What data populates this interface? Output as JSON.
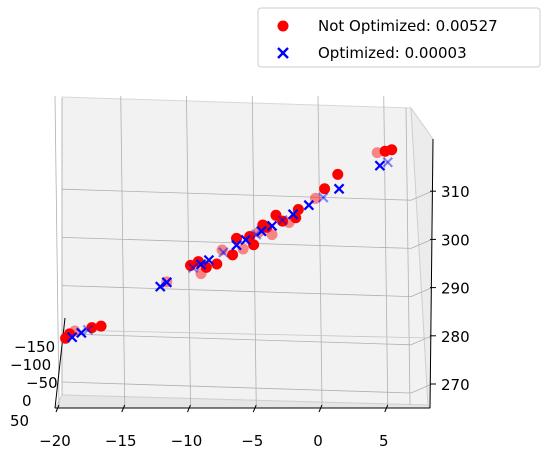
{
  "chart_data": {
    "type": "scatter",
    "projection": "3d",
    "legend": {
      "placement": "top-right",
      "entries": [
        {
          "label": "Not Optimized: 0.00527",
          "marker": "circle",
          "color": "#ff0000"
        },
        {
          "label": "Optimized: 0.00003",
          "marker": "x",
          "color": "#0000ff"
        }
      ]
    },
    "x_ticks": [
      "−20",
      "−15",
      "−10",
      "−5",
      "0",
      "5"
    ],
    "y_ticks": [
      "−150",
      "−100",
      "−50",
      "0",
      "50"
    ],
    "z_ticks": [
      "270",
      "280",
      "290",
      "300",
      "310"
    ],
    "xlim": [
      -20,
      7
    ],
    "zlim": [
      265,
      318
    ],
    "grid": true,
    "series": [
      {
        "name": "Not Optimized: 0.00527",
        "marker": "circle",
        "color": "#ff0000",
        "points": [
          [
            -19.5,
            279.5
          ],
          [
            -19.2,
            280.4
          ],
          [
            -18.8,
            281.0
          ],
          [
            -17.5,
            281.7
          ],
          [
            -16.8,
            282.0
          ],
          [
            -11.8,
            291.2
          ],
          [
            -10.0,
            294.6
          ],
          [
            -9.4,
            295.4
          ],
          [
            -9.2,
            292.9
          ],
          [
            -8.8,
            294.2
          ],
          [
            -8.0,
            294.9
          ],
          [
            -7.6,
            297.8
          ],
          [
            -6.8,
            296.8
          ],
          [
            -6.5,
            300.2
          ],
          [
            -6.0,
            298.0
          ],
          [
            -5.5,
            300.6
          ],
          [
            -5.2,
            298.9
          ],
          [
            -4.8,
            301.5
          ],
          [
            -4.5,
            303.0
          ],
          [
            -4.2,
            302.5
          ],
          [
            -3.8,
            301.0
          ],
          [
            -3.5,
            305.0
          ],
          [
            -3.0,
            303.8
          ],
          [
            -2.5,
            303.5
          ],
          [
            -2.0,
            304.5
          ],
          [
            -1.8,
            306.2
          ],
          [
            -0.5,
            308.5
          ],
          [
            0.2,
            310.5
          ],
          [
            1.2,
            313.5
          ],
          [
            4.2,
            318.0
          ],
          [
            4.8,
            318.3
          ],
          [
            5.3,
            318.6
          ]
        ]
      },
      {
        "name": "Optimized: 0.00003",
        "marker": "x",
        "color": "#0000ff",
        "points": [
          [
            -19.0,
            279.7
          ],
          [
            -18.3,
            280.6
          ],
          [
            -17.8,
            281.2
          ],
          [
            -12.3,
            290.2
          ],
          [
            -11.8,
            291.1
          ],
          [
            -9.8,
            294.1
          ],
          [
            -9.2,
            294.8
          ],
          [
            -8.6,
            295.7
          ],
          [
            -7.5,
            297.3
          ],
          [
            -6.5,
            298.8
          ],
          [
            -5.8,
            299.9
          ],
          [
            -5.0,
            301.0
          ],
          [
            -4.6,
            301.7
          ],
          [
            -3.8,
            302.8
          ],
          [
            -3.0,
            304.0
          ],
          [
            -2.2,
            305.2
          ],
          [
            -1.0,
            307.1
          ],
          [
            0.1,
            308.7
          ],
          [
            1.3,
            310.5
          ],
          [
            4.4,
            315.3
          ],
          [
            5.0,
            316.0
          ]
        ]
      }
    ]
  }
}
